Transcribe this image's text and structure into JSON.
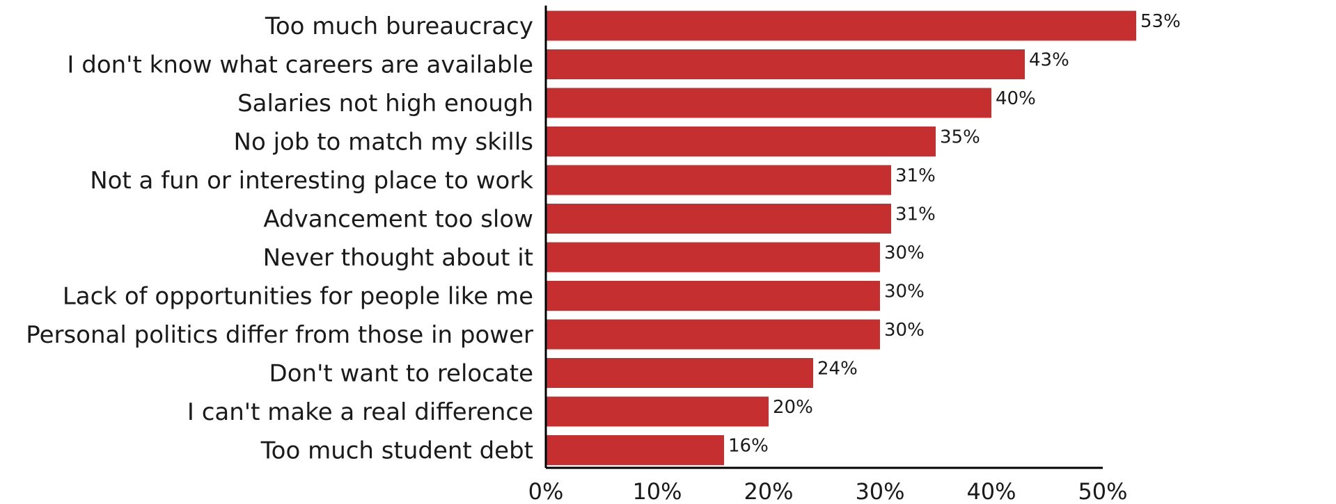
{
  "chart_data": {
    "type": "bar",
    "orientation": "horizontal",
    "title": "",
    "xlabel": "",
    "ylabel": "",
    "xlim": [
      0,
      0.5
    ],
    "grid": false,
    "bar_color": "#c62f2f",
    "categories": [
      "Too much bureaucracy",
      "I don't know what careers are available",
      "Salaries not high enough",
      "No job to match my skills",
      "Not a fun or interesting place to work",
      "Advancement too slow",
      "Never thought about it",
      "Lack of opportunities for people like me",
      "Personal politics differ from those in power",
      "Don't want to relocate",
      "I can't make a real difference",
      "Too much student debt"
    ],
    "values": [
      0.53,
      0.43,
      0.4,
      0.35,
      0.31,
      0.31,
      0.3,
      0.3,
      0.3,
      0.24,
      0.2,
      0.16
    ],
    "value_labels": [
      "53%",
      "43%",
      "40%",
      "35%",
      "31%",
      "31%",
      "30%",
      "30%",
      "30%",
      "24%",
      "20%",
      "16%"
    ],
    "x_ticks": [
      0,
      0.1,
      0.2,
      0.3,
      0.4,
      0.5
    ],
    "x_tick_labels": [
      "0%",
      "10%",
      "20%",
      "30%",
      "40%",
      "50%"
    ]
  }
}
